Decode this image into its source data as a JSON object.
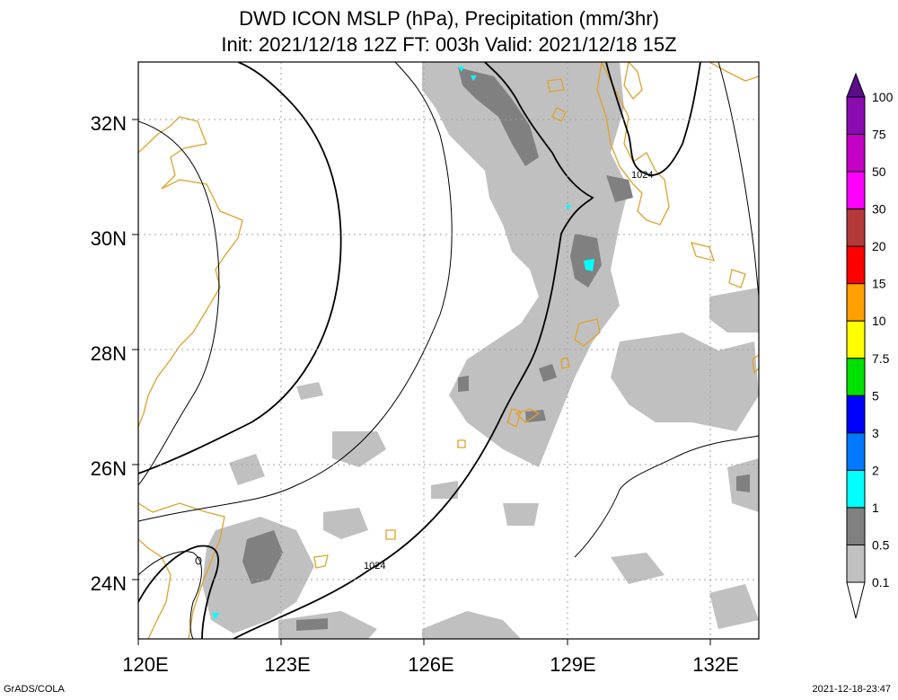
{
  "title": {
    "line1": "DWD ICON MSLP (hPa), Precipitation (mm/3hr)",
    "line2": "Init: 2021/12/18 12Z  FT: 003h  Valid: 2021/12/18 15Z"
  },
  "footer": {
    "left": "GrADS/COLA",
    "right": "2021-12-18-23:47"
  },
  "map": {
    "lon_range": [
      120,
      133
    ],
    "lat_range": [
      23,
      33
    ],
    "x_ticks": [
      "120E",
      "123E",
      "126E",
      "129E",
      "132E"
    ],
    "y_ticks": [
      "24N",
      "26N",
      "28N",
      "30N",
      "32N"
    ],
    "gridlines": true,
    "isobar_labels": [
      "1024",
      "1024"
    ]
  },
  "legend": {
    "labels": [
      "100",
      "75",
      "50",
      "30",
      "20",
      "15",
      "10",
      "7.5",
      "5",
      "3",
      "2",
      "1",
      "0.5",
      "0.1"
    ],
    "colors": [
      "#5a0e8a",
      "#8a0bb0",
      "#c400c4",
      "#ff00ff",
      "#b33a3a",
      "#ff0000",
      "#ff9f00",
      "#ffff00",
      "#00e000",
      "#0000ff",
      "#0078ff",
      "#00ffff",
      "#808080",
      "#c0c0c0",
      "#ffffff"
    ]
  },
  "colors": {
    "coastline": "#e0a12a",
    "precip_light": "#c0c0c0",
    "precip_medium": "#808080",
    "precip_high": "#00ffff"
  }
}
